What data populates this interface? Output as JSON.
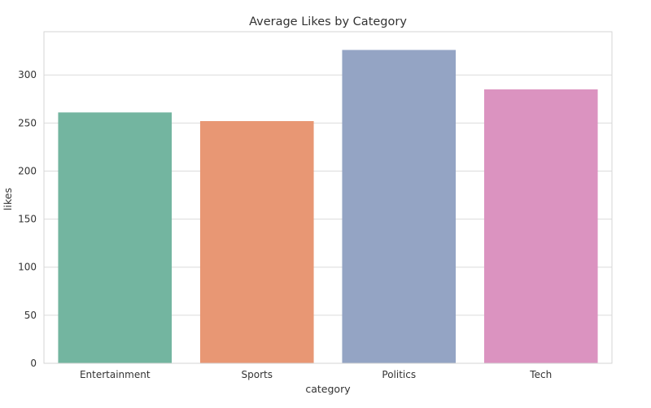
{
  "chart_data": {
    "type": "bar",
    "title": "Average Likes by Category",
    "xlabel": "category",
    "ylabel": "likes",
    "categories": [
      "Entertainment",
      "Sports",
      "Politics",
      "Tech"
    ],
    "values": [
      261,
      252,
      326,
      285
    ],
    "colors": [
      "#73b5a0",
      "#e89774",
      "#94a4c4",
      "#db93c0"
    ],
    "ylim": [
      0,
      345
    ],
    "yticks": [
      0,
      50,
      100,
      150,
      200,
      250,
      300
    ],
    "grid": true
  }
}
